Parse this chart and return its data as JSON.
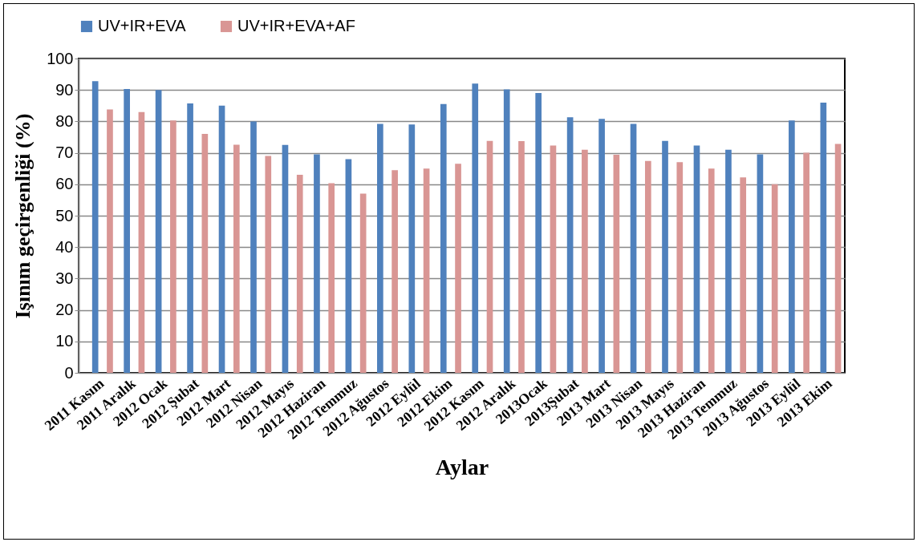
{
  "chart_data": {
    "type": "bar",
    "xlabel": "Aylar",
    "ylabel": "Işınım geçirgenliği (%)",
    "categories": [
      "2011 Kasım",
      "2011 Aralık",
      "2012 Ocak",
      "2012 Şubat",
      "2012 Mart",
      "2012 Nisan",
      "2012 Mayıs",
      "2012 Haziran",
      "2012 Temmuz",
      "2012 Ağustos",
      "2012 Eylül",
      "2012 Ekim",
      "2012 Kasım",
      "2012 Aralık",
      "2013Ocak",
      "2013Şubat",
      "2013 Mart",
      "2013 Nisan",
      "2013 Mayıs",
      "2013 Haziran",
      "2013 Temmuz",
      "2013 Ağustos",
      "2013 Eylül",
      "2013 Ekim"
    ],
    "series": [
      {
        "name": "UV+IR+EVA",
        "color": "#4f81bd",
        "values": [
          92.8,
          90.3,
          90,
          85.7,
          85,
          80,
          72.5,
          69.5,
          68,
          79.2,
          79,
          85.5,
          92,
          90.2,
          89,
          81.3,
          80.8,
          79.2,
          73.8,
          72.3,
          71,
          69.5,
          80.3,
          86
        ]
      },
      {
        "name": "UV+IR+EVA+AF",
        "color": "#d99694",
        "values": [
          83.8,
          83,
          80.3,
          76,
          72.6,
          69,
          63,
          60.3,
          57,
          64.5,
          65,
          66.5,
          73.8,
          73.7,
          72.3,
          71,
          69.4,
          67.4,
          67,
          65,
          62.2,
          60,
          70,
          72.8
        ]
      }
    ],
    "ylim": [
      0,
      100
    ],
    "yticks": [
      0,
      10,
      20,
      30,
      40,
      50,
      60,
      70,
      80,
      90,
      100
    ],
    "grid": "y",
    "legend": "top"
  }
}
